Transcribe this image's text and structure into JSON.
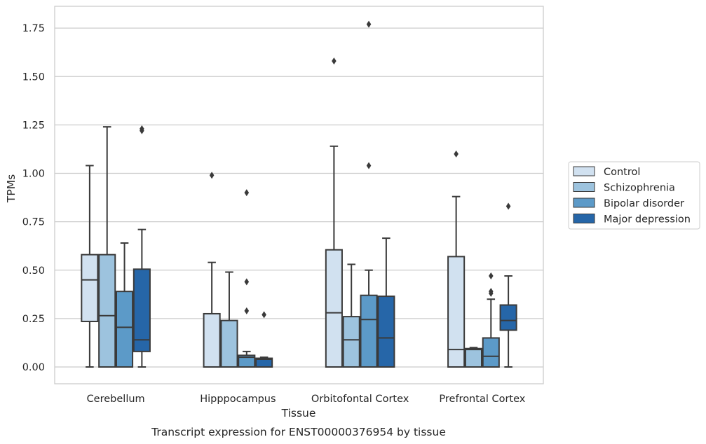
{
  "caption": "Transcript expression for ENST00000376954 by tissue",
  "chart_data": {
    "type": "box",
    "xlabel": "Tissue",
    "ylabel": "TPMs",
    "ylim": [
      -0.085,
      1.86
    ],
    "yticks": [
      "0.00",
      "0.25",
      "0.50",
      "0.75",
      "1.00",
      "1.25",
      "1.50",
      "1.75"
    ],
    "grid": "horizontal",
    "legend_placement": "right, outside plot",
    "categories": [
      "Cerebellum",
      "Hipppocampus",
      "Orbitofontal Cortex",
      "Prefrontal Cortex"
    ],
    "series": [
      {
        "name": "Control",
        "color": "#d1e1f0",
        "boxes": [
          {
            "whislo": 0.0,
            "q1": 0.235,
            "med": 0.45,
            "q3": 0.58,
            "whishi": 1.04,
            "fliers": []
          },
          {
            "whislo": 0.0,
            "q1": 0.0,
            "med": 0.0,
            "q3": 0.275,
            "whishi": 0.54,
            "fliers": [
              0.99
            ]
          },
          {
            "whislo": 0.0,
            "q1": 0.0,
            "med": 0.28,
            "q3": 0.605,
            "whishi": 1.14,
            "fliers": [
              1.58
            ]
          },
          {
            "whislo": 0.0,
            "q1": 0.0,
            "med": 0.09,
            "q3": 0.57,
            "whishi": 0.88,
            "fliers": [
              1.1
            ]
          }
        ]
      },
      {
        "name": "Schizophrenia",
        "color": "#9dc3de",
        "boxes": [
          {
            "whislo": 0.0,
            "q1": 0.0,
            "med": 0.265,
            "q3": 0.58,
            "whishi": 1.24,
            "fliers": []
          },
          {
            "whislo": 0.0,
            "q1": 0.0,
            "med": 0.0,
            "q3": 0.24,
            "whishi": 0.49,
            "fliers": []
          },
          {
            "whislo": 0.0,
            "q1": 0.0,
            "med": 0.14,
            "q3": 0.26,
            "whishi": 0.53,
            "fliers": []
          },
          {
            "whislo": 0.0,
            "q1": 0.0,
            "med": 0.09,
            "q3": 0.095,
            "whishi": 0.1,
            "fliers": []
          }
        ]
      },
      {
        "name": "Bipolar disorder",
        "color": "#5c9ac8",
        "boxes": [
          {
            "whislo": 0.0,
            "q1": 0.0,
            "med": 0.205,
            "q3": 0.39,
            "whishi": 0.64,
            "fliers": []
          },
          {
            "whislo": 0.0,
            "q1": 0.0,
            "med": 0.05,
            "q3": 0.06,
            "whishi": 0.08,
            "fliers": [
              0.9,
              0.44,
              0.29
            ]
          },
          {
            "whislo": 0.0,
            "q1": 0.0,
            "med": 0.245,
            "q3": 0.37,
            "whishi": 0.5,
            "fliers": [
              1.77,
              1.04
            ]
          },
          {
            "whislo": 0.0,
            "q1": 0.0,
            "med": 0.055,
            "q3": 0.15,
            "whishi": 0.35,
            "fliers": [
              0.47,
              0.39,
              0.38
            ]
          }
        ]
      },
      {
        "name": "Major depression",
        "color": "#2666a8",
        "boxes": [
          {
            "whislo": 0.0,
            "q1": 0.08,
            "med": 0.14,
            "q3": 0.505,
            "whishi": 0.71,
            "fliers": [
              1.23,
              1.22
            ]
          },
          {
            "whislo": 0.0,
            "q1": 0.0,
            "med": 0.04,
            "q3": 0.045,
            "whishi": 0.05,
            "fliers": [
              0.27
            ]
          },
          {
            "whislo": 0.0,
            "q1": 0.0,
            "med": 0.15,
            "q3": 0.365,
            "whishi": 0.665,
            "fliers": []
          },
          {
            "whislo": 0.0,
            "q1": 0.19,
            "med": 0.24,
            "q3": 0.32,
            "whishi": 0.47,
            "fliers": [
              0.83
            ]
          }
        ]
      }
    ]
  }
}
